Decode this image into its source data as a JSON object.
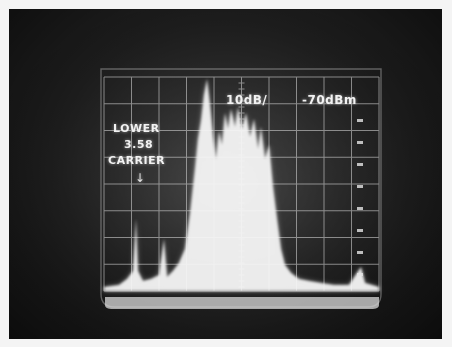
{
  "annotation": {
    "line1": "LOWER",
    "line2": "3.58",
    "line3": "CARRIER"
  },
  "readout": {
    "scale": "10dB/",
    "reference": "-70dBm"
  },
  "arrow_glyph": "↓",
  "colors": {
    "screen_background": "#1d1d1d",
    "graticule": "#cfcfcf",
    "trace": "#ffffff",
    "label_text": "#f2f2f2"
  }
}
